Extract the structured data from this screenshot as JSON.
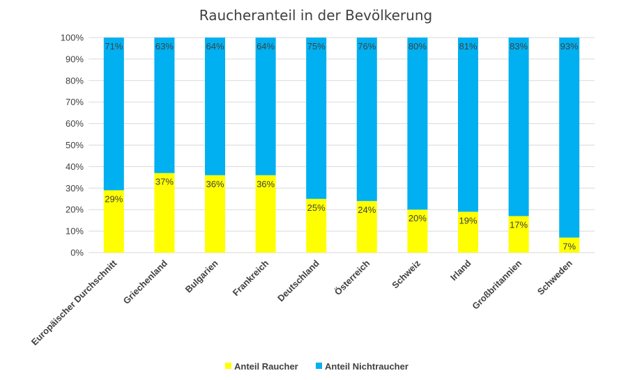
{
  "chart_data": {
    "type": "bar",
    "stacked": true,
    "percent_stacked": true,
    "title": "Raucheranteil in der Bevölkerung",
    "categories": [
      "Europäischer Durchschnitt",
      "Griechenland",
      "Bulgarien",
      "Frankreich",
      "Deutschland",
      "Österreich",
      "Schweiz",
      "Irland",
      "Großbritannien",
      "Schweden"
    ],
    "series": [
      {
        "name": "Anteil Raucher",
        "color": "#ffff00",
        "values": [
          29,
          37,
          36,
          36,
          25,
          24,
          20,
          19,
          17,
          7
        ],
        "labels": [
          "29%",
          "37%",
          "36%",
          "36%",
          "25%",
          "24%",
          "20%",
          "19%",
          "17%",
          "7%"
        ]
      },
      {
        "name": "Anteil Nichtraucher",
        "color": "#00b0f0",
        "values": [
          71,
          63,
          64,
          64,
          75,
          76,
          80,
          81,
          83,
          93
        ],
        "labels": [
          "71%",
          "63%",
          "64%",
          "64%",
          "75%",
          "76%",
          "80%",
          "81%",
          "83%",
          "93%"
        ]
      }
    ],
    "y_ticks": [
      "0%",
      "10%",
      "20%",
      "30%",
      "40%",
      "50%",
      "60%",
      "70%",
      "80%",
      "90%",
      "100%"
    ],
    "ylim": [
      0,
      100
    ],
    "grid": true,
    "legend_position": "bottom"
  }
}
